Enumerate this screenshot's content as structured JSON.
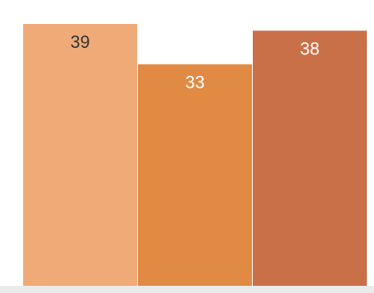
{
  "chart_data": {
    "type": "bar",
    "categories": [
      "",
      "",
      ""
    ],
    "values": [
      39,
      33,
      38
    ],
    "data_labels": [
      "39",
      "33",
      "38"
    ],
    "colors": [
      "#f0aa78",
      "#e08a43",
      "#c97049"
    ],
    "label_colors": [
      "#333333",
      "#ffffff",
      "#ffffff"
    ],
    "ylim": [
      0,
      39
    ],
    "grid": false,
    "baseline_color": "#ebebeb"
  }
}
